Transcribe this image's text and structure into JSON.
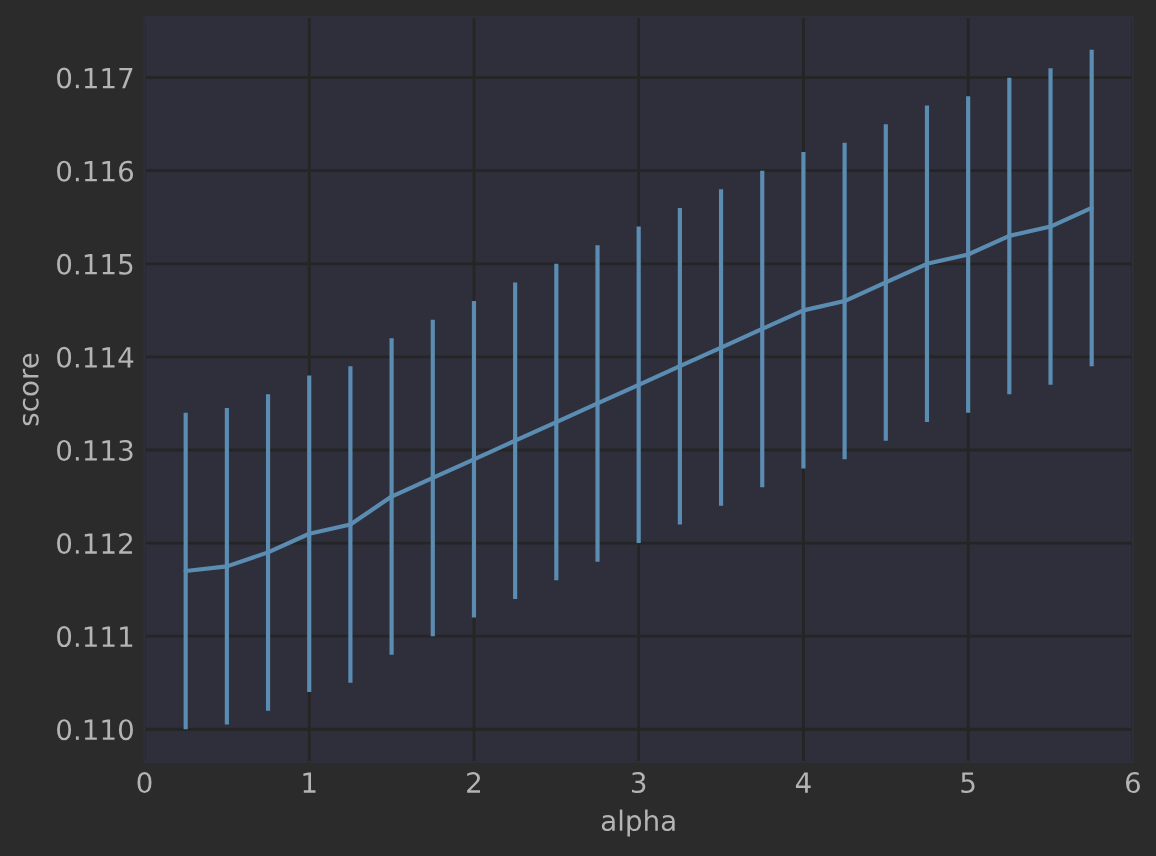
{
  "chart_data": {
    "type": "line",
    "xlabel": "alpha",
    "ylabel": "score",
    "x": [
      0.25,
      0.5,
      0.75,
      1.0,
      1.25,
      1.5,
      1.75,
      2.0,
      2.25,
      2.5,
      2.75,
      3.0,
      3.25,
      3.5,
      3.75,
      4.0,
      4.25,
      4.5,
      4.75,
      5.0,
      5.25,
      5.5,
      5.75
    ],
    "series": [
      {
        "color": "#5b8db3",
        "values": [
          0.1117,
          0.11175,
          0.1119,
          0.1121,
          0.1122,
          0.1125,
          0.1127,
          0.1129,
          0.1131,
          0.1133,
          0.1135,
          0.1137,
          0.1139,
          0.1141,
          0.1143,
          0.1145,
          0.1146,
          0.1148,
          0.115,
          0.1151,
          0.1153,
          0.1154,
          0.1156
        ],
        "errors": [
          0.0017,
          0.0017,
          0.0017,
          0.0017,
          0.0017,
          0.0017,
          0.0017,
          0.0017,
          0.0017,
          0.0017,
          0.0017,
          0.0017,
          0.0017,
          0.0017,
          0.0017,
          0.0017,
          0.0017,
          0.0017,
          0.0017,
          0.0017,
          0.0017,
          0.0017,
          0.0017
        ]
      }
    ],
    "xlim": [
      0,
      6
    ],
    "xticks": [
      0,
      1,
      2,
      3,
      4,
      5,
      6
    ],
    "ylim": [
      0.10965,
      0.11765
    ],
    "yticks": [
      {
        "value": 0.11,
        "label": "0.110"
      },
      0.111,
      0.112,
      0.113,
      0.114,
      0.115,
      0.116,
      0.117
    ],
    "grid": true,
    "marker": "none",
    "line_style": "solid"
  }
}
